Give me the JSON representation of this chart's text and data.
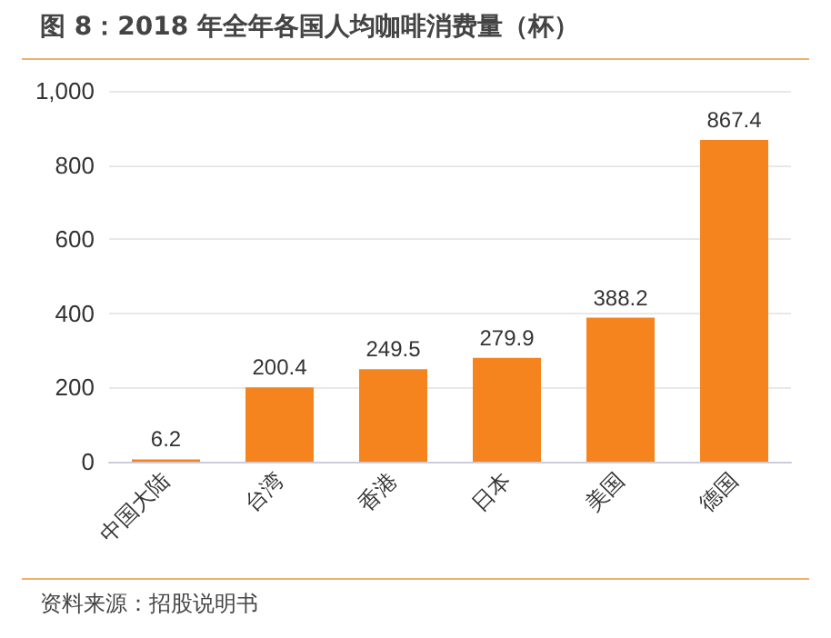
{
  "chart_data": {
    "type": "bar",
    "title": "图 8：2018 年全年各国人均咖啡消费量（杯）",
    "categories": [
      "中国大陆",
      "台湾",
      "香港",
      "日本",
      "美国",
      "德国"
    ],
    "values": [
      6.2,
      200.4,
      249.5,
      279.9,
      388.2,
      867.4
    ],
    "color": "#f5841f",
    "ylim": [
      0,
      1000
    ],
    "yticks": [
      0,
      200,
      400,
      600,
      800,
      {
        "value": 1000,
        "label": "1,000"
      }
    ],
    "grid": "y",
    "data_labels": true,
    "annotations": [
      "资料来源：招股说明书"
    ]
  }
}
